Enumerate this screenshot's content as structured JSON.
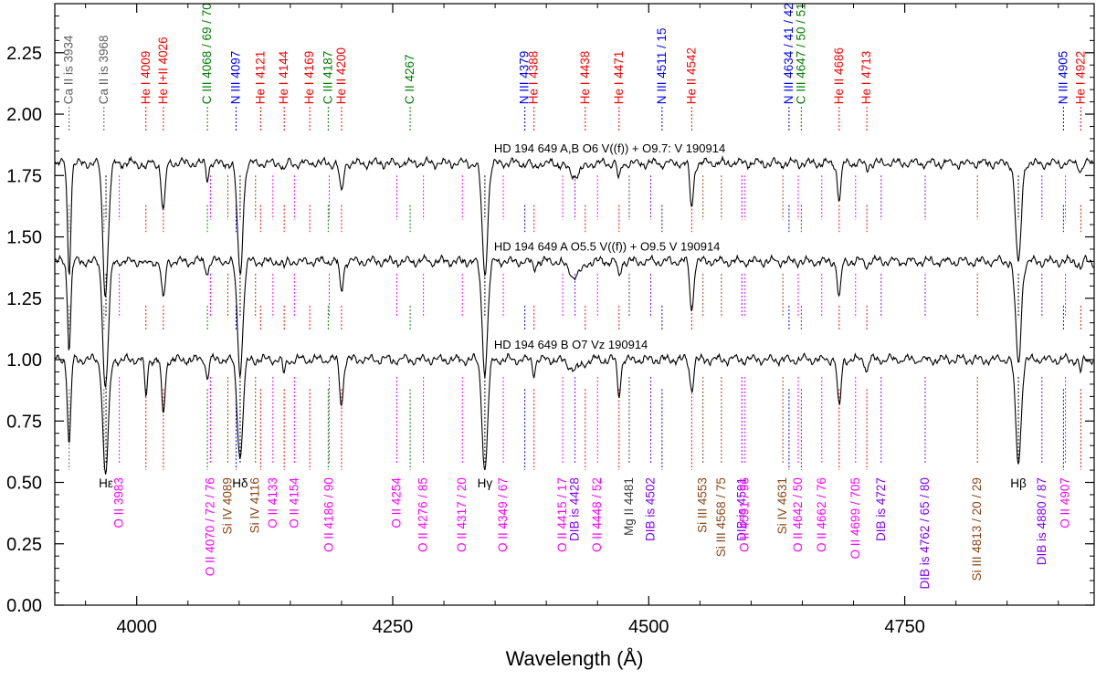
{
  "chart_data": {
    "type": "line",
    "xlabel": "Wavelength (Å)",
    "ylabel": "",
    "xlim": [
      3920,
      4935
    ],
    "ylim": [
      0.0,
      2.45
    ],
    "x_ticks": [
      4000,
      4250,
      4500,
      4750
    ],
    "y_ticks": [
      0.0,
      0.25,
      0.5,
      0.75,
      1.0,
      1.25,
      1.5,
      1.75,
      2.0,
      2.25
    ],
    "y_tick_labels": [
      "0.00",
      "0.25",
      "0.50",
      "0.75",
      "1.00",
      "1.25",
      "1.50",
      "1.75",
      "2.00",
      "2.25"
    ],
    "colors": {
      "Ca": "#606060",
      "HeI": "#ff0000",
      "CIII": "#008000",
      "NIII": "#0000ff",
      "OII": "#ff00ff",
      "SiIV": "#8b4513",
      "SiIII": "#8b4513",
      "DIB": "#8000ff",
      "MgII": "#404040",
      "H": "#000000"
    },
    "series": [
      {
        "name": "HD 194 649 A,B   O6 V((f)) + O9.7: V 190914",
        "offset": 1.8
      },
      {
        "name": "HD 194 649 A   O5.5 V((f)) + O9.5 V 190914",
        "offset": 1.4
      },
      {
        "name": "HD 194 649 B   O7 Vz 190914",
        "offset": 1.0
      }
    ],
    "top_lines": [
      {
        "label": "Ca II is 3934",
        "x": 3934,
        "color": "Ca"
      },
      {
        "label": "Ca II is 3968",
        "x": 3968,
        "color": "Ca"
      },
      {
        "label": "He I 4009",
        "x": 4009,
        "color": "HeI"
      },
      {
        "label": "He I+II 4026",
        "x": 4026,
        "color": "HeI"
      },
      {
        "label": "C III 4068 / 69 / 70",
        "x": 4069,
        "color": "CIII"
      },
      {
        "label": "N III 4097",
        "x": 4097,
        "color": "NIII"
      },
      {
        "label": "He I 4121",
        "x": 4121,
        "color": "HeI"
      },
      {
        "label": "He I 4144",
        "x": 4144,
        "color": "HeI"
      },
      {
        "label": "He I 4169",
        "x": 4169,
        "color": "HeI"
      },
      {
        "label": "C III 4187",
        "x": 4187,
        "color": "CIII"
      },
      {
        "label": "He II 4200",
        "x": 4200,
        "color": "HeI"
      },
      {
        "label": "C II 4267",
        "x": 4267,
        "color": "CIII"
      },
      {
        "label": "N III 4379",
        "x": 4379,
        "color": "NIII"
      },
      {
        "label": "He I 4388",
        "x": 4388,
        "color": "HeI"
      },
      {
        "label": "He I 4438",
        "x": 4438,
        "color": "HeI"
      },
      {
        "label": "He I 4471",
        "x": 4471,
        "color": "HeI"
      },
      {
        "label": "N III 4511 / 15",
        "x": 4513,
        "color": "NIII"
      },
      {
        "label": "He II 4542",
        "x": 4542,
        "color": "HeI"
      },
      {
        "label": "N III 4634 / 41 / 42",
        "x": 4637,
        "color": "NIII"
      },
      {
        "label": "C III 4647 / 50 / 51",
        "x": 4649,
        "color": "CIII"
      },
      {
        "label": "He II 4686",
        "x": 4686,
        "color": "HeI"
      },
      {
        "label": "He I 4713",
        "x": 4713,
        "color": "HeI"
      },
      {
        "label": "N III 4905",
        "x": 4905,
        "color": "NIII"
      },
      {
        "label": "He I 4922",
        "x": 4922,
        "color": "HeI"
      }
    ],
    "bottom_lines": [
      {
        "label": "Hε",
        "x": 3970,
        "color": "H",
        "row": 0
      },
      {
        "label": "O II 3983",
        "x": 3983,
        "color": "OII",
        "row": 1
      },
      {
        "label": "O II 4070 / 72 / 76",
        "x": 4072,
        "color": "OII",
        "row": 1
      },
      {
        "label": "Si IV 4089",
        "x": 4089,
        "color": "SiIV",
        "row": 1
      },
      {
        "label": "Hδ",
        "x": 4101,
        "color": "H",
        "row": 0
      },
      {
        "label": "Si IV 4116",
        "x": 4116,
        "color": "SiIV",
        "row": 1
      },
      {
        "label": "O II 4133",
        "x": 4133,
        "color": "OII",
        "row": 1
      },
      {
        "label": "O II 4154",
        "x": 4154,
        "color": "OII",
        "row": 1
      },
      {
        "label": "O II 4186 / 90",
        "x": 4188,
        "color": "OII",
        "row": 1
      },
      {
        "label": "O II 4254",
        "x": 4254,
        "color": "OII",
        "row": 1
      },
      {
        "label": "O II 4276 / 85",
        "x": 4280,
        "color": "OII",
        "row": 1
      },
      {
        "label": "O II 4317 / 20",
        "x": 4318,
        "color": "OII",
        "row": 1
      },
      {
        "label": "Hγ",
        "x": 4340,
        "color": "H",
        "row": 0
      },
      {
        "label": "O II 4349 / 67",
        "x": 4358,
        "color": "OII",
        "row": 1
      },
      {
        "label": "O II 4415 / 17",
        "x": 4416,
        "color": "OII",
        "row": 1
      },
      {
        "label": "DIB is 4428",
        "x": 4428,
        "color": "DIB",
        "row": 1
      },
      {
        "label": "O II 4448 / 52",
        "x": 4450,
        "color": "OII",
        "row": 1
      },
      {
        "label": "Mg II 4481",
        "x": 4481,
        "color": "MgII",
        "row": 1
      },
      {
        "label": "DIB is 4502",
        "x": 4502,
        "color": "DIB",
        "row": 1
      },
      {
        "label": "Si III 4553",
        "x": 4553,
        "color": "SiIII",
        "row": 1
      },
      {
        "label": "Si III 4568 / 75",
        "x": 4571,
        "color": "SiIII",
        "row": 1
      },
      {
        "label": "DIB is 4591",
        "x": 4591,
        "color": "DIB",
        "row": 1
      },
      {
        "label": "O II 4591 / 96",
        "x": 4594,
        "color": "OII",
        "row": 1
      },
      {
        "label": "Si IV 4631",
        "x": 4631,
        "color": "SiIV",
        "row": 1
      },
      {
        "label": "O II 4642 / 50",
        "x": 4646,
        "color": "OII",
        "row": 1
      },
      {
        "label": "O II 4662 / 76",
        "x": 4669,
        "color": "OII",
        "row": 1
      },
      {
        "label": "O II 4699 / 705",
        "x": 4702,
        "color": "OII",
        "row": 1
      },
      {
        "label": "DIB is 4727",
        "x": 4727,
        "color": "DIB",
        "row": 1
      },
      {
        "label": "DIB is 4762 / 65 / 80",
        "x": 4770,
        "color": "DIB",
        "row": 1
      },
      {
        "label": "Si III 4813 / 20 / 29",
        "x": 4821,
        "color": "SiIII",
        "row": 1
      },
      {
        "label": "Hβ",
        "x": 4861,
        "color": "H",
        "row": 0
      },
      {
        "label": "DIB is 4880 / 87",
        "x": 4884,
        "color": "DIB",
        "row": 1
      },
      {
        "label": "O II 4907",
        "x": 4907,
        "color": "OII",
        "row": 1
      }
    ],
    "absorption": [
      {
        "x": 3934,
        "w": 1.8,
        "d": [
          0.45,
          0.35,
          0.35
        ]
      },
      {
        "x": 3968,
        "w": 2.0,
        "d": [
          0.12,
          0.1,
          0.08
        ]
      },
      {
        "x": 3970,
        "w": 3.0,
        "d": [
          0.45,
          0.45,
          0.42
        ]
      },
      {
        "x": 4009,
        "w": 1.5,
        "d": [
          0.02,
          0.02,
          0.15
        ]
      },
      {
        "x": 4026,
        "w": 2.0,
        "d": [
          0.2,
          0.16,
          0.22
        ]
      },
      {
        "x": 4069,
        "w": 1.5,
        "d": [
          0.06,
          0.05,
          0.08
        ]
      },
      {
        "x": 4101,
        "w": 3.0,
        "d": [
          0.45,
          0.45,
          0.4
        ]
      },
      {
        "x": 4144,
        "w": 1.4,
        "d": [
          0.03,
          0.03,
          0.06
        ]
      },
      {
        "x": 4200,
        "w": 2.0,
        "d": [
          0.12,
          0.12,
          0.18
        ]
      },
      {
        "x": 4340,
        "w": 3.0,
        "d": [
          0.45,
          0.45,
          0.45
        ]
      },
      {
        "x": 4388,
        "w": 1.5,
        "d": [
          0.03,
          0.03,
          0.05
        ]
      },
      {
        "x": 4428,
        "w": 7.0,
        "d": [
          0.05,
          0.06,
          0.04
        ]
      },
      {
        "x": 4471,
        "w": 1.8,
        "d": [
          0.07,
          0.06,
          0.14
        ]
      },
      {
        "x": 4542,
        "w": 2.0,
        "d": [
          0.18,
          0.2,
          0.12
        ]
      },
      {
        "x": 4686,
        "w": 2.0,
        "d": [
          0.14,
          0.15,
          0.2
        ]
      },
      {
        "x": 4713,
        "w": 1.4,
        "d": [
          0.02,
          0.02,
          0.05
        ]
      },
      {
        "x": 4861,
        "w": 3.0,
        "d": [
          0.42,
          0.42,
          0.42
        ]
      },
      {
        "x": 4922,
        "w": 1.5,
        "d": [
          0.03,
          0.03,
          0.05
        ]
      }
    ]
  }
}
